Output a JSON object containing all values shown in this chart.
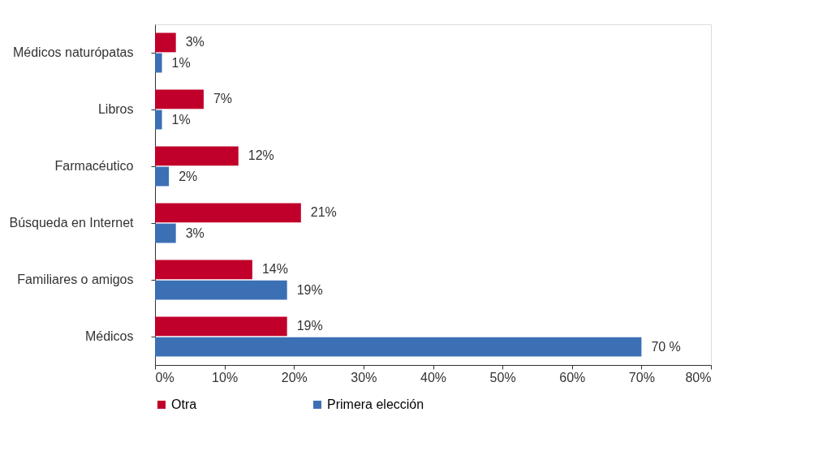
{
  "chart_data": {
    "type": "bar",
    "orientation": "horizontal",
    "categories": [
      "Médicos naturópatas",
      "Libros",
      "Farmacéutico",
      "Búsqueda en Internet",
      "Familiares o amigos",
      "Médicos"
    ],
    "series": [
      {
        "name": "Otra",
        "color": "#c0002a",
        "values": [
          3,
          7,
          12,
          21,
          14,
          19
        ],
        "value_labels": [
          "3%",
          "7%",
          "12%",
          "21%",
          "14%",
          "19%"
        ]
      },
      {
        "name": "Primera elección",
        "color": "#3c70b5",
        "values": [
          1,
          1,
          2,
          3,
          19,
          70
        ],
        "value_labels": [
          "1%",
          "1%",
          "2%",
          "3%",
          "19%",
          "70 %"
        ]
      }
    ],
    "xlim": [
      0,
      80
    ],
    "xticks": [
      {
        "value": 0,
        "label": "0%"
      },
      {
        "value": 10,
        "label": "10%"
      },
      {
        "value": 20,
        "label": "20%"
      },
      {
        "value": 30,
        "label": "30%"
      },
      {
        "value": 40,
        "label": "40%"
      },
      {
        "value": 50,
        "label": "50%"
      },
      {
        "value": 60,
        "label": "60%"
      },
      {
        "value": 70,
        "label": "70%"
      },
      {
        "value": 80,
        "label": "80%"
      }
    ],
    "grid": false,
    "legend": "bottom"
  }
}
